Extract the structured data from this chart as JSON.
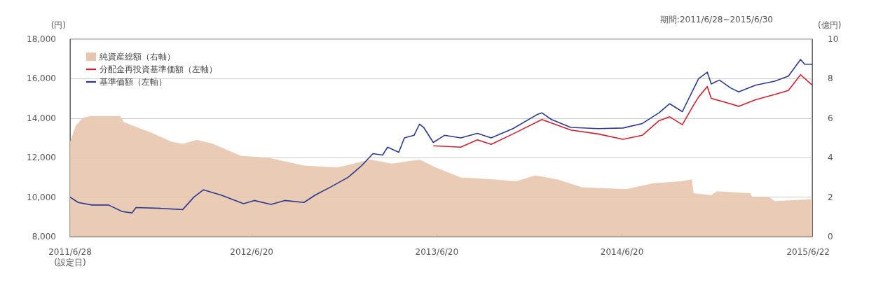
{
  "chart_data": {
    "type": "line",
    "ylabel": "(円)",
    "y2label": "(億円)",
    "annotations": [
      "期間:2011/6/28~2015/6/30"
    ],
    "xlim": [
      "2011-06-28",
      "2015-06-30"
    ],
    "xticks": [
      {
        "value": "2011-06-28",
        "label": "2011/6/28\n(設定日)"
      },
      {
        "value": "2012-06-20",
        "label": "2012/6/20"
      },
      {
        "value": "2013-06-20",
        "label": "2013/6/20"
      },
      {
        "value": "2014-06-20",
        "label": "2014/6/20"
      },
      {
        "value": "2015-06-22",
        "label": "2015/6/22"
      }
    ],
    "ylim": [
      8000,
      18000
    ],
    "yticks": [
      {
        "value": 8000,
        "label": "8,000"
      },
      {
        "value": 10000,
        "label": "10,000"
      },
      {
        "value": 12000,
        "label": "12,000"
      },
      {
        "value": 14000,
        "label": "14,000"
      },
      {
        "value": 16000,
        "label": "16,000"
      },
      {
        "value": 18000,
        "label": "18,000"
      }
    ],
    "y2lim": [
      0,
      10
    ],
    "y2ticks": [
      0,
      2,
      4,
      6,
      8,
      10
    ],
    "grid": "y",
    "legend": "top left",
    "marker": "none",
    "line_style": "solid",
    "series": [
      {
        "name": "純資産総額（右軸）",
        "type": "area",
        "axis": "y2",
        "color": "#e8c5ae",
        "x": [
          "2011-06-28",
          "2011-07-09",
          "2011-07-22",
          "2011-08-05",
          "2011-10-05",
          "2011-10-12",
          "2011-11-21",
          "2011-12-02",
          "2012-01-15",
          "2012-02-05",
          "2012-03-04",
          "2012-04-05",
          "2012-05-29",
          "2012-07-23",
          "2012-10-01",
          "2012-12-05",
          "2013-01-07",
          "2013-02-08",
          "2013-03-24",
          "2013-05-17",
          "2013-06-18",
          "2013-08-06",
          "2013-10-10",
          "2013-11-23",
          "2013-12-31",
          "2014-02-12",
          "2014-04-02",
          "2014-06-28",
          "2014-08-21",
          "2014-10-14",
          "2014-11-05",
          "2014-11-08",
          "2014-12-13",
          "2014-12-24",
          "2015-02-27",
          "2015-03-04",
          "2015-04-06",
          "2015-04-17",
          "2015-06-30"
        ],
        "values": [
          4.8,
          5.6,
          6.0,
          6.1,
          6.1,
          5.8,
          5.4,
          5.3,
          4.8,
          4.7,
          4.9,
          4.7,
          4.1,
          4.0,
          3.6,
          3.5,
          3.7,
          3.9,
          3.7,
          3.9,
          3.5,
          3.0,
          2.9,
          2.8,
          3.1,
          2.9,
          2.5,
          2.4,
          2.7,
          2.8,
          2.9,
          2.2,
          2.1,
          2.3,
          2.2,
          2.0,
          2.0,
          1.8,
          1.9
        ]
      },
      {
        "name": "分配金再投資基準価額（左軸）",
        "color": "#d01f2e",
        "x": [
          "2013-06-13",
          "2013-08-06",
          "2013-09-08",
          "2013-10-05",
          "2013-11-17",
          "2014-01-13",
          "2014-03-11",
          "2014-05-04",
          "2014-06-22",
          "2014-07-30",
          "2014-09-01",
          "2014-09-22",
          "2014-10-17",
          "2014-11-05",
          "2014-11-18",
          "2014-12-05",
          "2014-12-13",
          "2015-01-20",
          "2015-02-05",
          "2015-03-10",
          "2015-04-17",
          "2015-05-14",
          "2015-06-07",
          "2015-06-30"
        ],
        "values": [
          12600,
          12530,
          12900,
          12670,
          13200,
          13930,
          13400,
          13200,
          12930,
          13130,
          13870,
          14070,
          13670,
          14530,
          15070,
          15600,
          15000,
          14730,
          14600,
          14930,
          15200,
          15400,
          16200,
          15670
        ]
      },
      {
        "name": "基準価額（左軸）",
        "color": "#2b3a8e",
        "x": [
          "2011-06-28",
          "2011-07-14",
          "2011-08-10",
          "2011-09-12",
          "2011-10-09",
          "2011-10-28",
          "2011-11-05",
          "2011-12-24",
          "2012-02-05",
          "2012-02-27",
          "2012-03-17",
          "2012-04-21",
          "2012-06-04",
          "2012-06-25",
          "2012-07-28",
          "2012-08-24",
          "2012-10-01",
          "2012-10-23",
          "2012-11-24",
          "2012-12-27",
          "2013-01-23",
          "2013-02-14",
          "2013-03-05",
          "2013-03-15",
          "2013-04-06",
          "2013-04-17",
          "2013-05-06",
          "2013-05-17",
          "2013-05-25",
          "2013-06-13",
          "2013-07-05",
          "2013-08-06",
          "2013-09-08",
          "2013-10-05",
          "2013-11-17",
          "2014-01-05",
          "2014-01-13",
          "2014-02-01",
          "2014-03-11",
          "2014-05-04",
          "2014-06-22",
          "2014-07-30",
          "2014-09-01",
          "2014-09-22",
          "2014-10-17",
          "2014-11-05",
          "2014-11-18",
          "2014-12-05",
          "2014-12-13",
          "2014-12-29",
          "2015-01-20",
          "2015-02-05",
          "2015-03-10",
          "2015-04-17",
          "2015-05-14",
          "2015-06-07",
          "2015-06-15",
          "2015-06-30"
        ],
        "values": [
          10000,
          9730,
          9600,
          9600,
          9270,
          9200,
          9470,
          9430,
          9370,
          10000,
          10370,
          10100,
          9670,
          9830,
          9630,
          9830,
          9730,
          10100,
          10530,
          11000,
          11600,
          12200,
          12130,
          12530,
          12270,
          13000,
          13130,
          13700,
          13530,
          12770,
          13130,
          13000,
          13230,
          13000,
          13470,
          14200,
          14270,
          13930,
          13530,
          13470,
          13500,
          13730,
          14270,
          14730,
          14330,
          15330,
          16000,
          16330,
          15730,
          15930,
          15530,
          15330,
          15670,
          15870,
          16130,
          16970,
          16730,
          16730
        ]
      }
    ]
  }
}
